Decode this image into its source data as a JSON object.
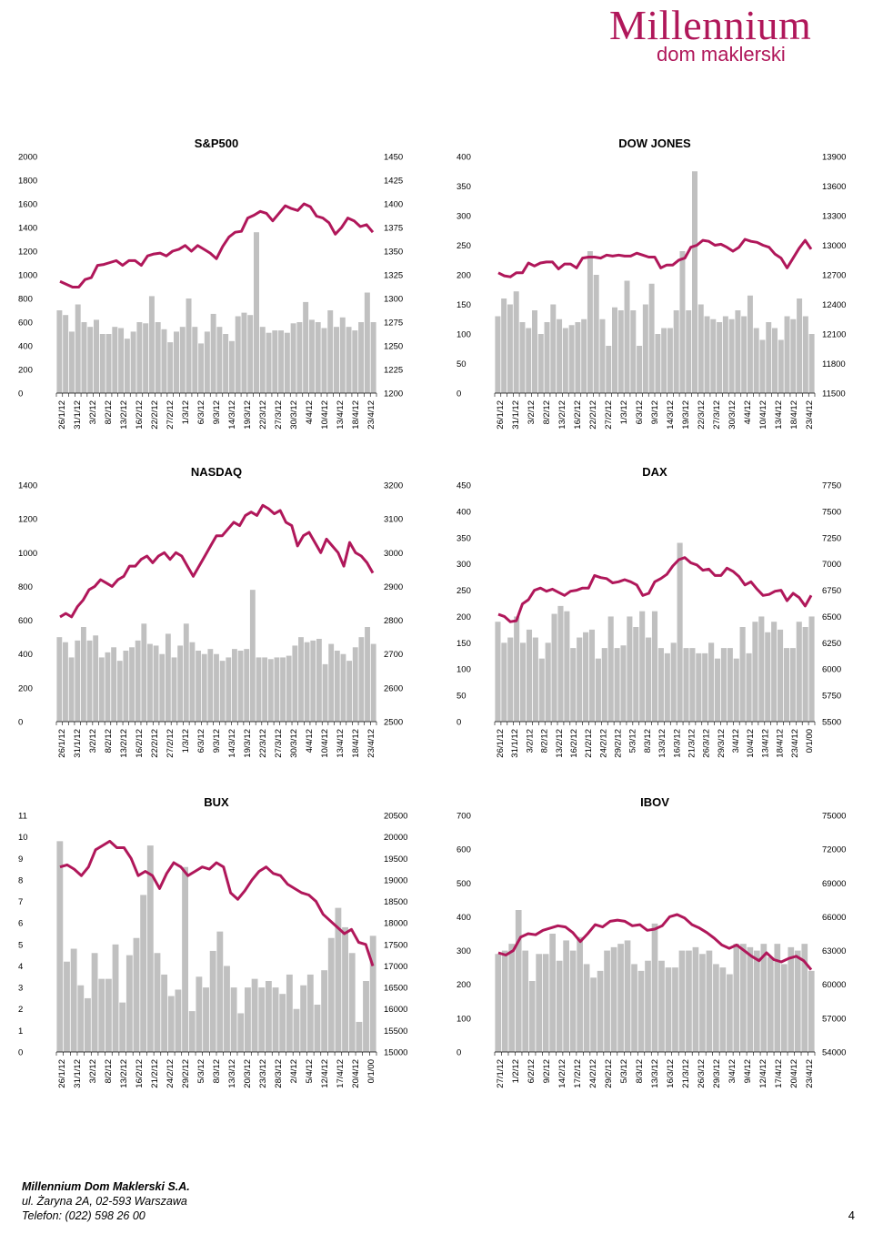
{
  "header": {
    "logo_main": "Millennium",
    "logo_sub": "dom maklerski"
  },
  "footer": {
    "company": "Millennium Dom Maklerski S.A.",
    "address": "ul. Żaryna 2A, 02-593 Warszawa",
    "phone": "Telefon: (022) 598 26 00",
    "page": "4"
  },
  "colors": {
    "line": "#b0175a",
    "bar": "#c0c0c0"
  },
  "chart_data": [
    {
      "type": "bar+line",
      "title": "S&P500",
      "categories": [
        "26/1/12",
        "31/1/12",
        "3/2/12",
        "8/2/12",
        "13/2/12",
        "16/2/12",
        "22/2/12",
        "27/2/12",
        "1/3/12",
        "6/3/12",
        "9/3/12",
        "14/3/12",
        "19/3/12",
        "22/3/12",
        "27/3/12",
        "30/3/12",
        "4/4/12",
        "10/4/12",
        "13/4/12",
        "18/4/12",
        "23/4/12"
      ],
      "left_ticks": [
        "0",
        "200",
        "400",
        "600",
        "800",
        "1000",
        "1200",
        "1400",
        "1600",
        "1800",
        "2000"
      ],
      "left_range": [
        0,
        2000
      ],
      "right_ticks": [
        "1200",
        "1225",
        "1250",
        "1275",
        "1300",
        "1325",
        "1350",
        "1375",
        "1400",
        "1425",
        "1450"
      ],
      "right_range": [
        1200,
        1450
      ],
      "bars": [
        700,
        660,
        520,
        750,
        600,
        560,
        620,
        500,
        500,
        560,
        550,
        460,
        520,
        600,
        590,
        820,
        600,
        540,
        430,
        520,
        560,
        800,
        560,
        420,
        520,
        670,
        560,
        500,
        440,
        650,
        680,
        660,
        1360,
        560,
        510,
        530,
        530,
        510,
        590,
        600,
        770,
        620,
        600,
        550,
        700,
        560,
        640,
        560,
        530,
        600,
        850,
        600
      ],
      "line": [
        1318,
        1315,
        1312,
        1312,
        1320,
        1322,
        1335,
        1336,
        1338,
        1340,
        1335,
        1340,
        1340,
        1335,
        1345,
        1347,
        1348,
        1345,
        1350,
        1352,
        1356,
        1350,
        1356,
        1352,
        1348,
        1342,
        1355,
        1365,
        1370,
        1371,
        1385,
        1388,
        1392,
        1390,
        1382,
        1390,
        1398,
        1395,
        1393,
        1400,
        1397,
        1387,
        1385,
        1380,
        1368,
        1375,
        1385,
        1382,
        1376,
        1378,
        1370
      ]
    },
    {
      "type": "bar+line",
      "title": "DOW JONES",
      "categories": [
        "26/1/12",
        "31/1/12",
        "3/2/12",
        "8/2/12",
        "13/2/12",
        "16/2/12",
        "22/2/12",
        "27/2/12",
        "1/3/12",
        "6/3/12",
        "9/3/12",
        "14/3/12",
        "19/3/12",
        "22/3/12",
        "27/3/12",
        "30/3/12",
        "4/4/12",
        "10/4/12",
        "13/4/12",
        "18/4/12",
        "23/4/12"
      ],
      "left_ticks": [
        "0",
        "50",
        "100",
        "150",
        "200",
        "250",
        "300",
        "350",
        "400"
      ],
      "left_range": [
        0,
        400
      ],
      "right_ticks": [
        "11500",
        "11800",
        "12100",
        "12400",
        "12700",
        "13000",
        "13300",
        "13600",
        "13900"
      ],
      "right_range": [
        11500,
        13900
      ],
      "bars": [
        130,
        160,
        150,
        172,
        120,
        110,
        140,
        100,
        120,
        150,
        125,
        110,
        115,
        120,
        125,
        240,
        200,
        125,
        80,
        145,
        140,
        190,
        140,
        80,
        150,
        185,
        100,
        110,
        110,
        140,
        240,
        140,
        375,
        150,
        130,
        125,
        120,
        130,
        125,
        140,
        130,
        165,
        110,
        90,
        120,
        110,
        90,
        130,
        125,
        160,
        130,
        100
      ],
      "line": [
        12720,
        12690,
        12680,
        12720,
        12720,
        12820,
        12790,
        12820,
        12830,
        12830,
        12760,
        12810,
        12810,
        12770,
        12870,
        12880,
        12880,
        12870,
        12900,
        12890,
        12900,
        12890,
        12890,
        12920,
        12900,
        12880,
        12880,
        12770,
        12800,
        12800,
        12850,
        12870,
        12980,
        13000,
        13050,
        13040,
        13000,
        13010,
        12980,
        12940,
        12980,
        13060,
        13040,
        13030,
        13000,
        12980,
        12910,
        12870,
        12770,
        12870,
        12970,
        13050,
        12960
      ]
    },
    {
      "type": "bar+line",
      "title": "NASDAQ",
      "categories": [
        "26/1/12",
        "31/1/12",
        "3/2/12",
        "8/2/12",
        "13/2/12",
        "16/2/12",
        "22/2/12",
        "27/2/12",
        "1/3/12",
        "6/3/12",
        "9/3/12",
        "14/3/12",
        "19/3/12",
        "22/3/12",
        "27/3/12",
        "30/3/12",
        "4/4/12",
        "10/4/12",
        "13/4/12",
        "18/4/12",
        "23/4/12"
      ],
      "left_ticks": [
        "0",
        "200",
        "400",
        "600",
        "800",
        "1000",
        "1200",
        "1400"
      ],
      "left_range": [
        0,
        1400
      ],
      "right_ticks": [
        "2500",
        "2600",
        "2700",
        "2800",
        "2900",
        "3000",
        "3100",
        "3200"
      ],
      "right_range": [
        2500,
        3200
      ],
      "bars": [
        500,
        470,
        380,
        480,
        560,
        480,
        510,
        380,
        410,
        440,
        360,
        420,
        440,
        480,
        580,
        460,
        450,
        400,
        520,
        380,
        450,
        580,
        470,
        420,
        400,
        430,
        400,
        360,
        380,
        430,
        420,
        430,
        780,
        380,
        380,
        370,
        380,
        380,
        390,
        450,
        500,
        470,
        480,
        490,
        340,
        460,
        420,
        400,
        360,
        440,
        500,
        560,
        460
      ],
      "line": [
        2810,
        2820,
        2810,
        2840,
        2860,
        2890,
        2900,
        2920,
        2910,
        2900,
        2920,
        2930,
        2960,
        2960,
        2980,
        2990,
        2970,
        2990,
        3000,
        2980,
        3000,
        2990,
        2960,
        2930,
        2960,
        2990,
        3020,
        3050,
        3050,
        3070,
        3090,
        3080,
        3110,
        3120,
        3110,
        3140,
        3130,
        3115,
        3125,
        3090,
        3080,
        3020,
        3050,
        3060,
        3030,
        3000,
        3040,
        3020,
        3000,
        2960,
        3030,
        3000,
        2990,
        2970,
        2940
      ]
    },
    {
      "type": "bar+line",
      "title": "DAX",
      "categories": [
        "26/1/12",
        "31/1/12",
        "3/2/12",
        "8/2/12",
        "13/2/12",
        "16/2/12",
        "21/2/12",
        "24/2/12",
        "29/2/12",
        "5/3/12",
        "8/3/12",
        "13/3/12",
        "16/3/12",
        "21/3/12",
        "26/3/12",
        "29/3/12",
        "3/4/12",
        "10/4/12",
        "13/4/12",
        "18/4/12",
        "23/4/12",
        "0/1/00"
      ],
      "left_ticks": [
        "0",
        "50",
        "100",
        "150",
        "200",
        "250",
        "300",
        "350",
        "400",
        "450"
      ],
      "left_range": [
        0,
        450
      ],
      "right_ticks": [
        "5500",
        "5750",
        "6000",
        "6250",
        "6500",
        "6750",
        "7000",
        "7250",
        "7500",
        "7750"
      ],
      "right_range": [
        5500,
        7750
      ],
      "bars": [
        190,
        150,
        160,
        200,
        150,
        175,
        160,
        120,
        150,
        205,
        220,
        210,
        140,
        160,
        170,
        175,
        120,
        140,
        200,
        140,
        145,
        200,
        180,
        210,
        160,
        210,
        140,
        130,
        150,
        340,
        140,
        140,
        130,
        130,
        150,
        120,
        140,
        140,
        120,
        180,
        130,
        190,
        200,
        170,
        190,
        175,
        140,
        140,
        190,
        180,
        200
      ],
      "line": [
        6520,
        6500,
        6450,
        6460,
        6620,
        6660,
        6750,
        6770,
        6740,
        6760,
        6730,
        6700,
        6740,
        6750,
        6770,
        6770,
        6890,
        6870,
        6860,
        6820,
        6830,
        6850,
        6830,
        6800,
        6700,
        6720,
        6830,
        6860,
        6900,
        6980,
        7040,
        7060,
        7010,
        6990,
        6940,
        6950,
        6890,
        6890,
        6960,
        6930,
        6880,
        6800,
        6830,
        6760,
        6700,
        6710,
        6740,
        6750,
        6650,
        6720,
        6680,
        6600,
        6700
      ]
    },
    {
      "type": "bar+line",
      "title": "BUX",
      "categories": [
        "26/1/12",
        "31/1/12",
        "3/2/12",
        "8/2/12",
        "13/2/12",
        "16/2/12",
        "21/2/12",
        "24/2/12",
        "29/2/12",
        "5/3/12",
        "8/3/12",
        "13/3/12",
        "20/3/12",
        "23/3/12",
        "28/3/12",
        "2/4/12",
        "5/4/12",
        "12/4/12",
        "17/4/12",
        "20/4/12",
        "0/1/00"
      ],
      "left_ticks": [
        "0",
        "1",
        "2",
        "3",
        "4",
        "5",
        "6",
        "7",
        "8",
        "9",
        "10",
        "11"
      ],
      "left_range": [
        0,
        11
      ],
      "right_ticks": [
        "15000",
        "15500",
        "16000",
        "16500",
        "17000",
        "17500",
        "18000",
        "18500",
        "19000",
        "19500",
        "20000",
        "20500"
      ],
      "right_range": [
        15000,
        20500
      ],
      "bars": [
        9.8,
        4.2,
        4.8,
        3.1,
        2.5,
        4.6,
        3.4,
        3.4,
        5.0,
        2.3,
        4.5,
        5.3,
        7.3,
        9.6,
        4.6,
        3.6,
        2.6,
        2.9,
        8.6,
        1.9,
        3.5,
        3.0,
        4.7,
        5.6,
        4.0,
        3.0,
        1.8,
        3.0,
        3.4,
        3.0,
        3.3,
        3.0,
        2.7,
        3.6,
        2.0,
        3.1,
        3.6,
        2.2,
        3.8,
        5.3,
        6.7,
        5.8,
        4.6,
        1.4,
        3.3,
        5.4
      ],
      "line": [
        19300,
        19350,
        19250,
        19100,
        19300,
        19700,
        19800,
        19900,
        19750,
        19750,
        19500,
        19100,
        19200,
        19100,
        18800,
        19150,
        19400,
        19300,
        19100,
        19200,
        19300,
        19250,
        19400,
        19300,
        18700,
        18550,
        18750,
        19000,
        19200,
        19300,
        19150,
        19100,
        18900,
        18800,
        18700,
        18650,
        18500,
        18200,
        18050,
        17900,
        17750,
        17850,
        17550,
        17500,
        17000
      ]
    },
    {
      "type": "bar+line",
      "title": "IBOV",
      "categories": [
        "27/1/12",
        "1/2/12",
        "6/2/12",
        "9/2/12",
        "14/2/12",
        "17/2/12",
        "24/2/12",
        "29/2/12",
        "5/3/12",
        "8/3/12",
        "13/3/12",
        "16/3/12",
        "21/3/12",
        "26/3/12",
        "29/3/12",
        "3/4/12",
        "9/4/12",
        "12/4/12",
        "17/4/12",
        "20/4/12",
        "23/4/12"
      ],
      "left_ticks": [
        "0",
        "100",
        "200",
        "300",
        "400",
        "500",
        "600",
        "700"
      ],
      "left_range": [
        0,
        700
      ],
      "right_ticks": [
        "54000",
        "57000",
        "60000",
        "63000",
        "66000",
        "69000",
        "72000",
        "75000"
      ],
      "right_range": [
        54000,
        75000
      ],
      "bars": [
        290,
        300,
        320,
        420,
        300,
        210,
        290,
        290,
        350,
        270,
        330,
        300,
        340,
        260,
        220,
        240,
        300,
        310,
        320,
        330,
        260,
        240,
        270,
        380,
        270,
        250,
        250,
        300,
        300,
        310,
        290,
        300,
        260,
        250,
        230,
        320,
        320,
        310,
        300,
        320,
        280,
        320,
        260,
        310,
        300,
        320,
        240
      ],
      "line": [
        62800,
        62600,
        63000,
        64200,
        64500,
        64400,
        64800,
        65000,
        65200,
        65100,
        64600,
        63800,
        64500,
        65300,
        65100,
        65600,
        65700,
        65600,
        65200,
        65300,
        64800,
        64900,
        65200,
        66000,
        66200,
        65900,
        65300,
        65000,
        64600,
        64100,
        63500,
        63200,
        63500,
        63000,
        62500,
        62100,
        62800,
        62200,
        62000,
        62300,
        62500,
        62100,
        61300
      ]
    }
  ]
}
